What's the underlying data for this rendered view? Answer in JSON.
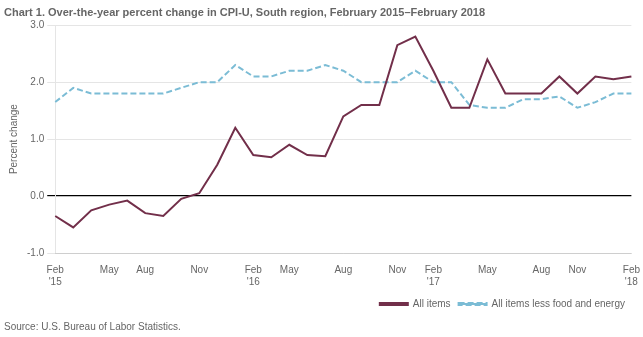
{
  "chart_data": {
    "type": "line",
    "title": "Chart 1. Over-the-year percent change in CPI-U, South region, February 2015–February 2018",
    "ylabel": "Percent change",
    "annotations": [
      "Source: U.S. Bureau of Labor Statistics."
    ],
    "categories": [
      "Feb\n'15",
      null,
      null,
      "May",
      null,
      "Aug",
      null,
      null,
      "Nov",
      null,
      null,
      "Feb\n'16",
      null,
      "May",
      null,
      null,
      "Aug",
      null,
      null,
      "Nov",
      null,
      "Feb\n'17",
      null,
      null,
      "May",
      null,
      null,
      "Aug",
      null,
      "Nov",
      null,
      null,
      "Feb\n'18"
    ],
    "series": [
      {
        "name": "All items",
        "color": "#722F4A",
        "line_style": "solid",
        "values": [
          -0.35,
          -0.55,
          -0.25,
          -0.15,
          -0.08,
          -0.3,
          -0.35,
          -0.05,
          0.05,
          0.55,
          1.2,
          0.72,
          0.68,
          0.9,
          0.72,
          0.7,
          1.4,
          1.6,
          1.6,
          2.65,
          2.8,
          2.2,
          1.55,
          1.55,
          2.4,
          1.8,
          1.8,
          1.8,
          2.1,
          1.8,
          2.1,
          2.05,
          2.1
        ]
      },
      {
        "name": "All items less food and energy",
        "color": "#7BBCD5",
        "line_style": "dashed",
        "values": [
          1.65,
          1.9,
          1.8,
          1.8,
          1.8,
          1.8,
          1.8,
          1.9,
          2.0,
          2.0,
          2.3,
          2.1,
          2.1,
          2.2,
          2.2,
          2.3,
          2.2,
          2.0,
          2.0,
          2.0,
          2.2,
          2.0,
          2.0,
          1.6,
          1.55,
          1.55,
          1.7,
          1.7,
          1.75,
          1.55,
          1.65,
          1.8,
          1.8
        ]
      }
    ],
    "ylim": [
      -1.0,
      3.0
    ],
    "yticks": [
      {
        "value": -1.0,
        "label": "-1.0"
      },
      {
        "value": 0.0,
        "label": "0.0"
      },
      {
        "value": 1.0,
        "label": "1.0"
      },
      {
        "value": 2.0,
        "label": "2.0"
      },
      {
        "value": 3.0,
        "label": "3.0"
      }
    ],
    "grid": "y",
    "legend": "lower right"
  }
}
